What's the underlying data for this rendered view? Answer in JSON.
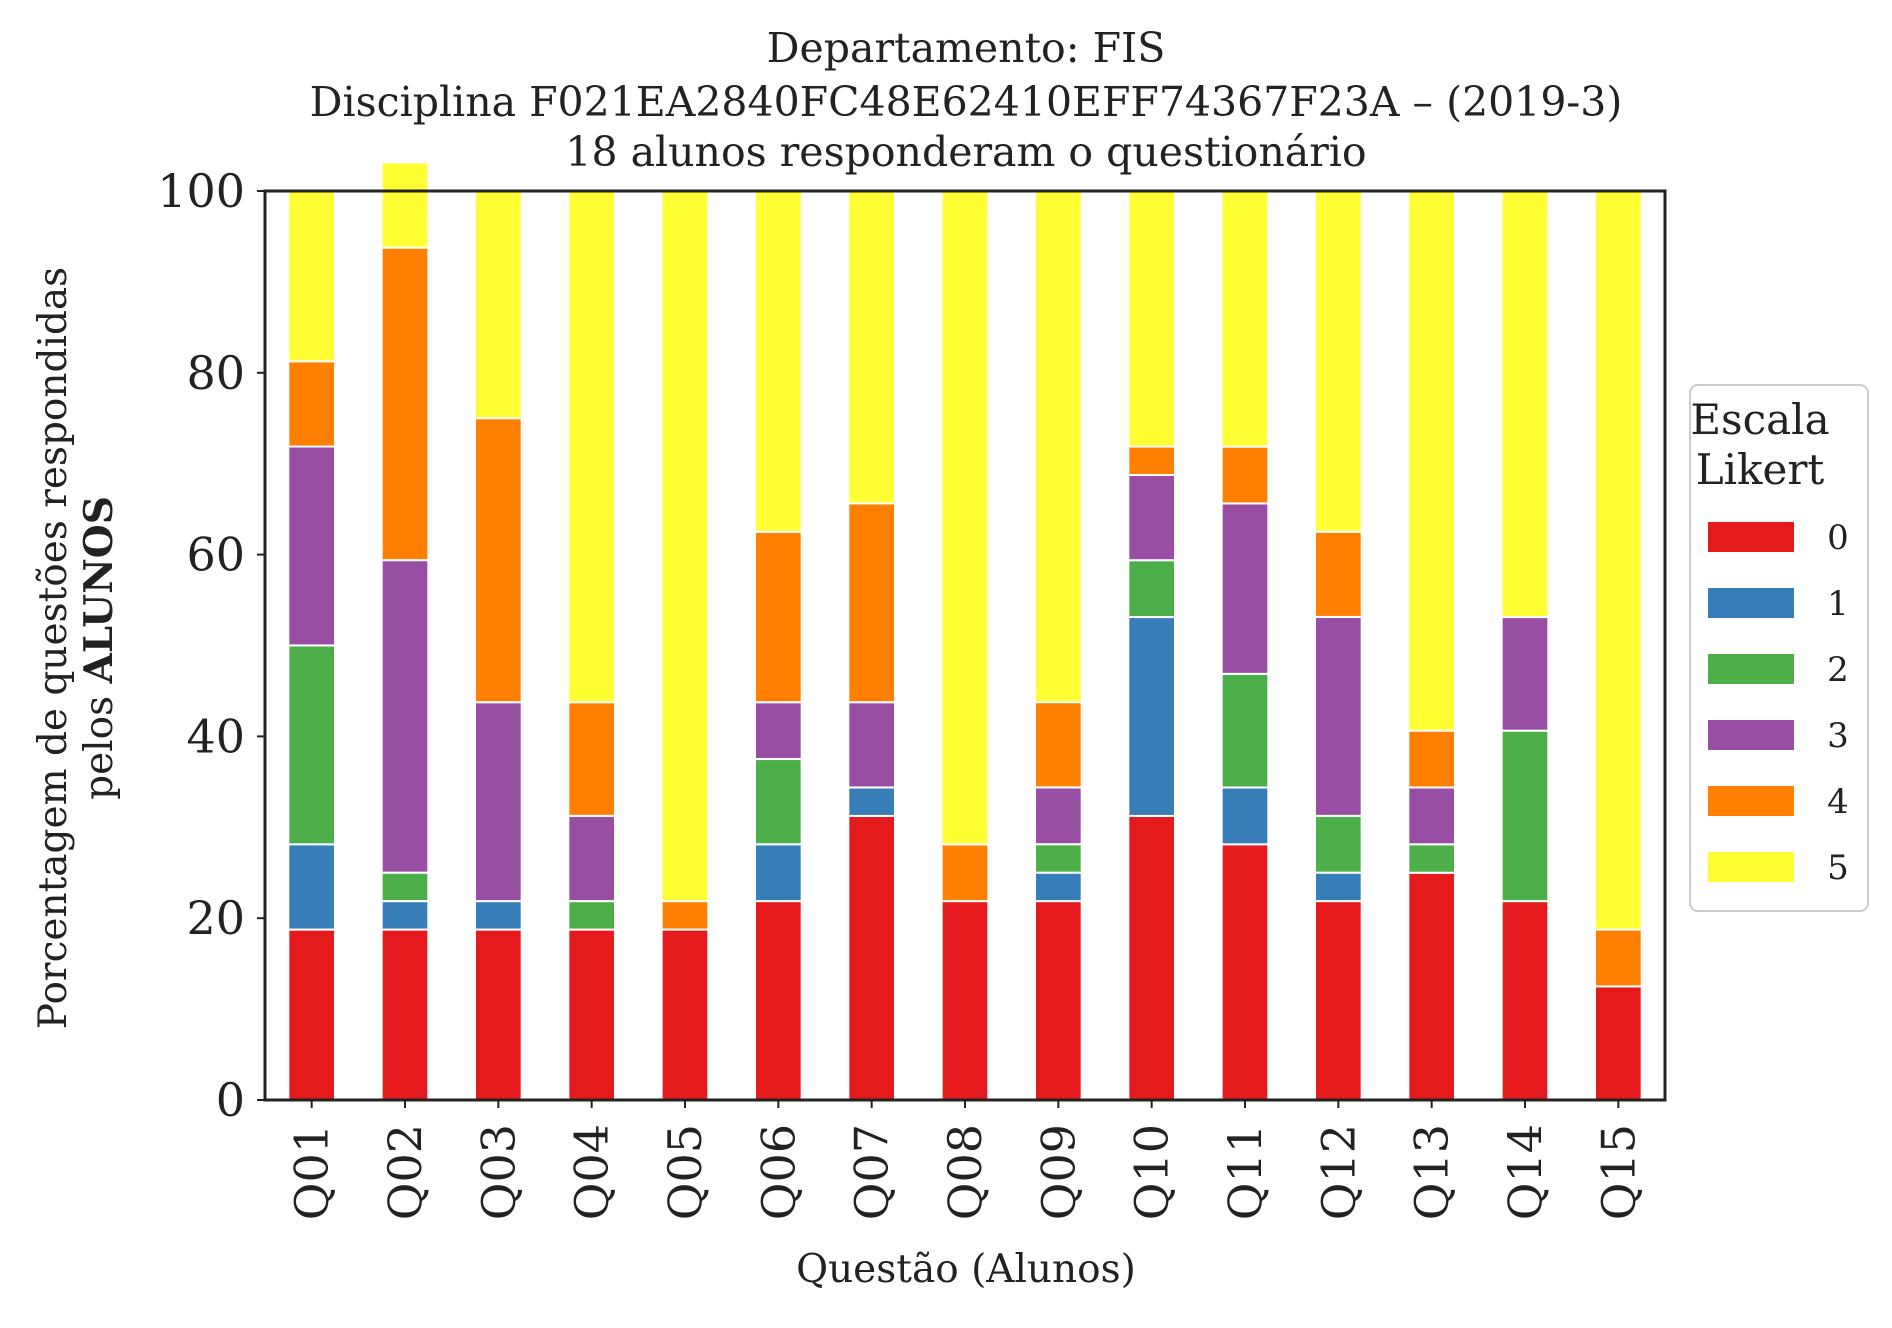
{
  "chart_data": {
    "type": "bar",
    "stacked": true,
    "title_lines": [
      "Departamento: FIS",
      "Disciplina F021EA2840FC48E62410EFF74367F23A – (2019-3)",
      "18 alunos responderam o questionário"
    ],
    "ylabel_line1": "Porcentagem de questões respondidas",
    "ylabel_line2_prefix": "pelos ",
    "ylabel_line2_bold": "ALUNOS",
    "xlabel": "Questão (Alunos)",
    "ylim": [
      0,
      100
    ],
    "yticks": [
      "0",
      "20",
      "40",
      "60",
      "80",
      "100"
    ],
    "grid": false,
    "categories": [
      "Q01",
      "Q02",
      "Q03",
      "Q04",
      "Q05",
      "Q06",
      "Q07",
      "Q08",
      "Q09",
      "Q10",
      "Q11",
      "Q12",
      "Q13",
      "Q14",
      "Q15"
    ],
    "legend": {
      "title_lines": [
        "Escala",
        "Likert"
      ],
      "placement": "right-center"
    },
    "series": [
      {
        "name": "0",
        "color": "#e41a1c",
        "values": [
          18.75,
          18.75,
          18.75,
          18.75,
          18.75,
          21.88,
          31.25,
          21.88,
          21.88,
          31.25,
          28.13,
          21.88,
          25.0,
          21.88,
          12.5
        ]
      },
      {
        "name": "1",
        "color": "#377eb8",
        "values": [
          9.38,
          3.13,
          3.13,
          0,
          0,
          6.25,
          3.13,
          0,
          3.13,
          21.88,
          6.25,
          3.13,
          0,
          0,
          0
        ]
      },
      {
        "name": "2",
        "color": "#4daf4a",
        "values": [
          21.88,
          3.13,
          0,
          3.13,
          0,
          9.38,
          0,
          0,
          3.13,
          6.25,
          12.5,
          6.25,
          3.13,
          18.75,
          0
        ]
      },
      {
        "name": "3",
        "color": "#984ea3",
        "values": [
          21.88,
          34.38,
          21.88,
          9.38,
          0,
          6.25,
          9.38,
          0,
          6.25,
          9.38,
          18.75,
          21.88,
          6.25,
          12.5,
          0
        ]
      },
      {
        "name": "4",
        "color": "#ff7f00",
        "values": [
          9.38,
          34.38,
          31.25,
          12.5,
          3.13,
          18.75,
          21.88,
          6.25,
          9.38,
          3.13,
          6.25,
          9.38,
          6.25,
          0,
          6.25
        ]
      },
      {
        "name": "5",
        "color": "#ffff33",
        "values": [
          18.75,
          9.38,
          25.0,
          56.25,
          78.13,
          37.5,
          34.38,
          71.88,
          56.25,
          28.13,
          28.13,
          37.5,
          59.38,
          46.88,
          81.25
        ]
      }
    ]
  }
}
